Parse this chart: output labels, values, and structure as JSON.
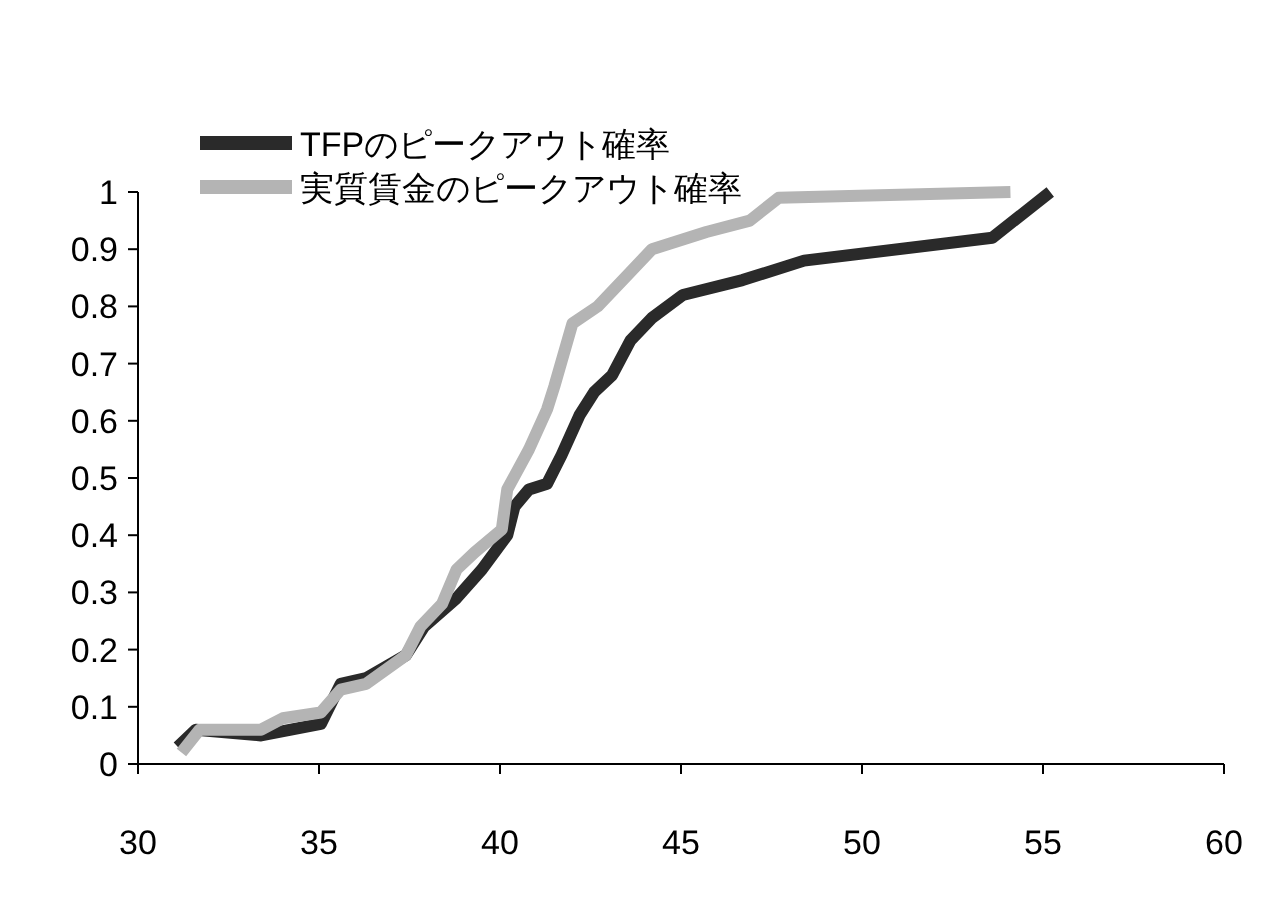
{
  "chart_data": {
    "type": "line",
    "xlim": [
      30,
      60
    ],
    "xticks": [
      30,
      35,
      40,
      45,
      50,
      55,
      60
    ],
    "ylim": [
      0,
      1
    ],
    "yticks": [
      0,
      0.1,
      0.2,
      0.3,
      0.4,
      0.5,
      0.6,
      0.7,
      0.8,
      0.9,
      1
    ],
    "grid": false,
    "legend": "top left",
    "marker": "none",
    "line_style": "solid",
    "series": [
      {
        "name": "TFPのピークアウト確率",
        "color": "#2a2a2a",
        "x": [
          31.1,
          31.6,
          33.4,
          35.05,
          35.6,
          36.3,
          37.4,
          37.9,
          38.8,
          39.5,
          40.2,
          40.4,
          40.8,
          41.3,
          41.7,
          42.2,
          42.6,
          43.1,
          43.6,
          44.2,
          45.05,
          46.7,
          48.4,
          53.6,
          55.2
        ],
        "values": [
          0.03,
          0.06,
          0.05,
          0.07,
          0.14,
          0.15,
          0.19,
          0.24,
          0.29,
          0.34,
          0.4,
          0.45,
          0.48,
          0.49,
          0.54,
          0.61,
          0.65,
          0.68,
          0.74,
          0.78,
          0.82,
          0.846,
          0.88,
          0.92,
          1.0
        ]
      },
      {
        "name": "実質賃金のピークアウト確率",
        "color": "#b4b4b4",
        "x": [
          31.2,
          31.7,
          33.4,
          34.0,
          35.05,
          35.6,
          36.3,
          37.4,
          37.8,
          38.4,
          38.8,
          39.3,
          40.05,
          40.2,
          40.8,
          41.3,
          41.5,
          42.0,
          42.7,
          43.6,
          44.2,
          45.7,
          46.9,
          47.7,
          54.1
        ],
        "values": [
          0.02,
          0.06,
          0.06,
          0.08,
          0.09,
          0.13,
          0.14,
          0.19,
          0.24,
          0.28,
          0.34,
          0.37,
          0.41,
          0.48,
          0.55,
          0.62,
          0.66,
          0.77,
          0.8,
          0.86,
          0.9,
          0.93,
          0.95,
          0.99,
          1.0
        ]
      }
    ]
  }
}
